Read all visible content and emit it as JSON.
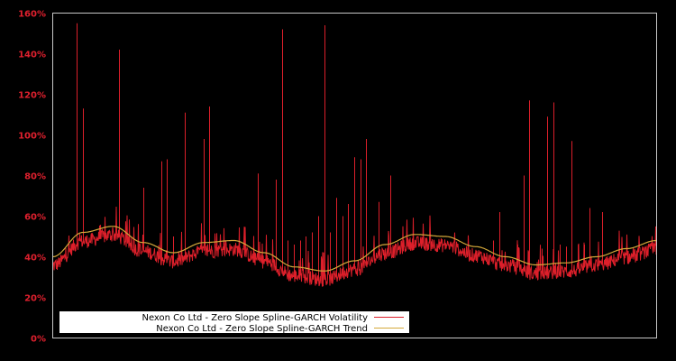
{
  "chart_data": {
    "type": "line",
    "title": "",
    "xlabel": "",
    "ylabel": "",
    "ylim": [
      0,
      160
    ],
    "y_unit": "%",
    "yticks": [
      "0%",
      "20%",
      "40%",
      "60%",
      "80%",
      "100%",
      "120%",
      "140%",
      "160%"
    ],
    "grid": false,
    "legend_position": "lower left",
    "background": "#000000",
    "series": [
      {
        "name": "Nexon Co Ltd - Zero Slope Spline-GARCH Volatility",
        "color": "#dc1f2a",
        "x_frac": [
          0.0,
          0.02,
          0.04,
          0.05,
          0.06,
          0.07,
          0.08,
          0.09,
          0.1,
          0.11,
          0.12,
          0.13,
          0.14,
          0.15,
          0.16,
          0.17,
          0.18,
          0.19,
          0.2,
          0.21,
          0.22,
          0.23,
          0.24,
          0.25,
          0.26,
          0.27,
          0.28,
          0.29,
          0.3,
          0.31,
          0.32,
          0.33,
          0.34,
          0.35,
          0.36,
          0.37,
          0.38,
          0.39,
          0.4,
          0.41,
          0.42,
          0.43,
          0.44,
          0.45,
          0.46,
          0.47,
          0.48,
          0.49,
          0.5,
          0.51,
          0.52,
          0.53,
          0.54,
          0.55,
          0.56,
          0.57,
          0.58,
          0.59,
          0.6,
          0.61,
          0.62,
          0.63,
          0.64,
          0.65,
          0.66,
          0.67,
          0.68,
          0.69,
          0.7,
          0.71,
          0.72,
          0.73,
          0.74,
          0.75,
          0.76,
          0.77,
          0.78,
          0.79,
          0.8,
          0.81,
          0.82,
          0.83,
          0.84,
          0.85,
          0.86,
          0.87,
          0.88,
          0.89,
          0.9,
          0.91,
          0.92,
          0.93,
          0.94,
          0.95,
          0.96,
          0.97,
          0.98,
          0.99,
          1.0
        ],
        "values": [
          82,
          45,
          155,
          113,
          55,
          52,
          58,
          52,
          48,
          142,
          42,
          40,
          38,
          74,
          40,
          38,
          87,
          88,
          50,
          48,
          111,
          49,
          47,
          98,
          114,
          44,
          40,
          38,
          36,
          34,
          32,
          31,
          81,
          32,
          34,
          78,
          152,
          48,
          46,
          48,
          50,
          52,
          60,
          154,
          52,
          69,
          60,
          66,
          89,
          88,
          98,
          46,
          67,
          44,
          80,
          42,
          38,
          44,
          38,
          37,
          36,
          34,
          35,
          36,
          34,
          38,
          38,
          48,
          34,
          36,
          36,
          48,
          62,
          42,
          44,
          46,
          80,
          117,
          42,
          44,
          109,
          116,
          46,
          45,
          97,
          46,
          46,
          64,
          44,
          62,
          46,
          46,
          46,
          46,
          47,
          46,
          46,
          46,
          77
        ],
        "note": "approximate sampled envelope incl. major spikes; baseline ~ trend minus 5-8%"
      },
      {
        "name": "Nexon Co Ltd - Zero Slope Spline-GARCH Trend",
        "color": "#d4a83a",
        "x_frac": [
          0.0,
          0.05,
          0.1,
          0.15,
          0.2,
          0.25,
          0.3,
          0.35,
          0.4,
          0.45,
          0.5,
          0.55,
          0.6,
          0.65,
          0.7,
          0.75,
          0.8,
          0.85,
          0.9,
          0.95,
          1.0
        ],
        "values": [
          40,
          52,
          55,
          47,
          42,
          47,
          48,
          42,
          35,
          33,
          38,
          46,
          51,
          50,
          45,
          40,
          36,
          37,
          40,
          44,
          48
        ]
      }
    ]
  },
  "legend": {
    "items": [
      {
        "label": "Nexon Co Ltd - Zero Slope Spline-GARCH Volatility",
        "color": "#dc1f2a"
      },
      {
        "label": "Nexon Co Ltd - Zero Slope Spline-GARCH Trend",
        "color": "#d4a83a"
      }
    ]
  }
}
